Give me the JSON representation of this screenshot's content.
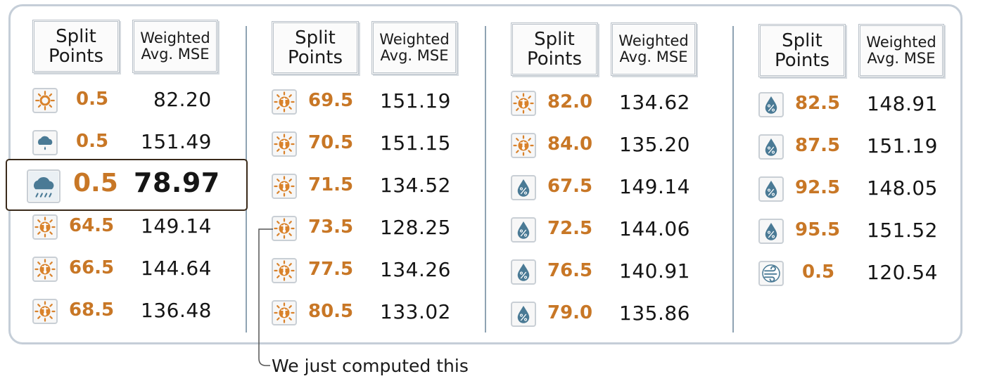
{
  "headers": {
    "split_points": "Split\nPoints",
    "weighted_mse": "Weighted\nAvg. MSE"
  },
  "columns": [
    {
      "rows": [
        {
          "icon": "sun-icon",
          "split": "0.5",
          "mse": "82.20"
        },
        {
          "icon": "rain-cloud-icon",
          "split": "0.5",
          "mse": "151.49"
        },
        {
          "icon": "sun-thermometer-icon",
          "split": "64.5",
          "mse": "149.14"
        },
        {
          "icon": "sun-thermometer-icon",
          "split": "66.5",
          "mse": "144.64"
        },
        {
          "icon": "sun-thermometer-icon",
          "split": "68.5",
          "mse": "136.48"
        }
      ]
    },
    {
      "rows": [
        {
          "icon": "sun-thermometer-icon",
          "split": "69.5",
          "mse": "151.19"
        },
        {
          "icon": "sun-thermometer-icon",
          "split": "70.5",
          "mse": "151.15"
        },
        {
          "icon": "sun-thermometer-icon",
          "split": "71.5",
          "mse": "134.52"
        },
        {
          "icon": "sun-thermometer-icon",
          "split": "73.5",
          "mse": "128.25"
        },
        {
          "icon": "sun-thermometer-icon",
          "split": "77.5",
          "mse": "134.26"
        },
        {
          "icon": "sun-thermometer-icon",
          "split": "80.5",
          "mse": "133.02"
        }
      ]
    },
    {
      "rows": [
        {
          "icon": "sun-thermometer-icon",
          "split": "82.0",
          "mse": "134.62"
        },
        {
          "icon": "sun-thermometer-icon",
          "split": "84.0",
          "mse": "135.20"
        },
        {
          "icon": "humidity-drop-icon",
          "split": "67.5",
          "mse": "149.14"
        },
        {
          "icon": "humidity-drop-icon",
          "split": "72.5",
          "mse": "144.06"
        },
        {
          "icon": "humidity-drop-icon",
          "split": "76.5",
          "mse": "140.91"
        },
        {
          "icon": "humidity-drop-icon",
          "split": "79.0",
          "mse": "135.86"
        }
      ]
    },
    {
      "rows": [
        {
          "icon": "humidity-drop-icon",
          "split": "82.5",
          "mse": "148.91"
        },
        {
          "icon": "humidity-drop-icon",
          "split": "87.5",
          "mse": "151.19"
        },
        {
          "icon": "humidity-drop-icon",
          "split": "92.5",
          "mse": "148.05"
        },
        {
          "icon": "humidity-drop-icon",
          "split": "95.5",
          "mse": "151.52"
        },
        {
          "icon": "wind-icon",
          "split": "0.5",
          "mse": "120.54"
        }
      ]
    }
  ],
  "highlight": {
    "icon": "rainy-cloud-icon",
    "split": "0.5",
    "mse": "78.97"
  },
  "callout": {
    "text": "We just computed this"
  },
  "colors": {
    "split_value": "#c87726",
    "mse_value": "#151515",
    "panel_border": "#c5ced8",
    "divider": "#8fa3b3",
    "icon_orange": "#d9822b",
    "icon_blue": "#4a7a95"
  }
}
